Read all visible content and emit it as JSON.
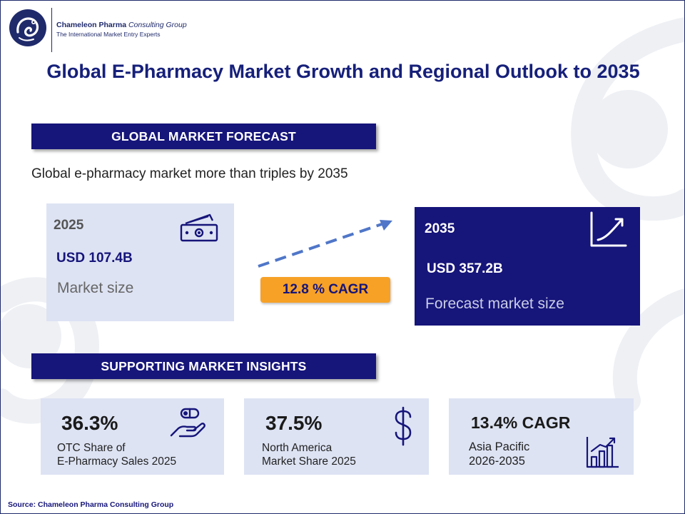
{
  "brand": {
    "name": "Chameleon Pharma",
    "name_suffix": "Consulting Group",
    "tagline": "The International Market Entry Experts"
  },
  "title": "Global E-Pharmacy Market Growth and Regional Outlook to 2035",
  "sections": {
    "forecast_label": "GLOBAL MARKET FORECAST",
    "insights_label": "SUPPORTING MARKET INSIGHTS"
  },
  "forecast": {
    "subtitle": "Global e-pharmacy market more than triples by 2035",
    "start": {
      "year": "2025",
      "value": "USD 107.4B",
      "desc": "Market size",
      "icon": "money-icon"
    },
    "end": {
      "year": "2035",
      "value": "USD 357.2B",
      "desc": "Forecast market size",
      "icon": "growth-chart-icon"
    },
    "cagr": "12.8 % CAGR"
  },
  "insights": [
    {
      "value": "36.3%",
      "desc": "OTC Share of\nE-Pharmacy Sales 2025",
      "icon": "hand-pill-icon"
    },
    {
      "value": "37.5%",
      "desc": "North America\nMarket Share 2025",
      "icon": "dollar-icon"
    },
    {
      "value": "13.4% CAGR",
      "desc": "Asia Pacific\n2026-2035",
      "icon": "bar-chart-icon"
    }
  ],
  "source": "Source: Chameleon Pharma Consulting Group",
  "colors": {
    "navy": "#16157a",
    "light_card": "#dde3f3",
    "accent_orange": "#f7a127",
    "arrow_blue": "#4f76c8"
  }
}
